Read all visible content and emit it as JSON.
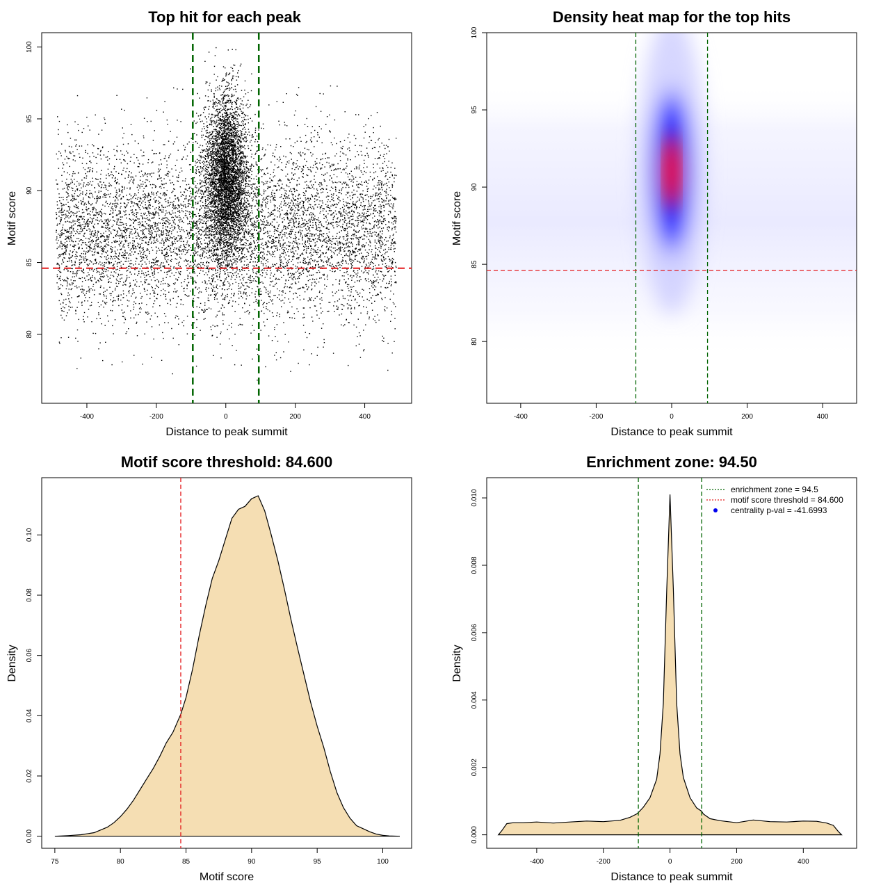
{
  "chart_data": [
    {
      "type": "scatter",
      "title": "Top hit for each peak",
      "xlabel": "Distance to peak summit",
      "ylabel": "Motif score",
      "xticks": [
        "-400",
        "-200",
        "0",
        "200",
        "400"
      ],
      "yticks": [
        "80",
        "85",
        "90",
        "95",
        "100"
      ],
      "xlim": [
        -530,
        535
      ],
      "ylim": [
        75.2,
        101
      ],
      "point_count": 12000,
      "points_note": "Dense background ~75-95 across -490..490; strong central cluster near 0 (sd ~30) at scores ~85-100",
      "vlines": [
        -95,
        95
      ],
      "hline": 84.6
    },
    {
      "type": "heatmap",
      "title": "Density heat map for the top hits",
      "xlabel": "Distance to peak summit",
      "ylabel": "Motif score",
      "xticks": [
        "-400",
        "-200",
        "0",
        "200",
        "400"
      ],
      "yticks": [
        "80",
        "85",
        "90",
        "95",
        "100"
      ],
      "xlim": [
        -490,
        490
      ],
      "ylim": [
        76,
        100
      ],
      "peak": {
        "x": 0,
        "y": 91
      },
      "vlines": [
        -95,
        95
      ],
      "hline": 84.6
    },
    {
      "type": "area",
      "title": "Motif score threshold: 84.600",
      "xlabel": "Motif score",
      "ylabel": "Density",
      "xticks": [
        "75",
        "80",
        "85",
        "90",
        "95",
        "100"
      ],
      "yticks": [
        "0.00",
        "0.02",
        "0.04",
        "0.06",
        "0.08",
        "0.10"
      ],
      "xlim": [
        74,
        102.2
      ],
      "ylim": [
        -0.004,
        0.119
      ],
      "x": [
        75,
        76,
        77,
        78,
        79,
        79.5,
        80,
        80.5,
        81,
        81.5,
        82,
        82.5,
        83,
        83.5,
        84,
        84.6,
        85,
        85.5,
        86,
        86.5,
        87,
        87.5,
        88,
        88.5,
        89,
        89.5,
        90,
        90.5,
        91,
        91.5,
        92,
        92.5,
        93,
        93.5,
        94,
        94.5,
        95,
        95.5,
        96,
        96.5,
        97,
        97.5,
        98,
        98.5,
        99,
        99.5,
        100,
        100.5,
        101.3
      ],
      "y": [
        0,
        0.0002,
        0.0005,
        0.0012,
        0.003,
        0.0045,
        0.0065,
        0.009,
        0.012,
        0.0155,
        0.019,
        0.0225,
        0.0265,
        0.031,
        0.0345,
        0.0405,
        0.046,
        0.0555,
        0.0665,
        0.0765,
        0.0855,
        0.0915,
        0.0985,
        0.1055,
        0.1085,
        0.1095,
        0.112,
        0.113,
        0.108,
        0.1,
        0.0915,
        0.082,
        0.072,
        0.0625,
        0.0535,
        0.0445,
        0.0365,
        0.0295,
        0.0215,
        0.0145,
        0.0095,
        0.006,
        0.0035,
        0.0025,
        0.0015,
        0.0007,
        0.0003,
        0.0001,
        0
      ],
      "vline": 84.6
    },
    {
      "type": "area",
      "title": "Enrichment zone: 94.50",
      "xlabel": "Distance to peak summit",
      "ylabel": "Density",
      "xticks": [
        "-400",
        "-200",
        "0",
        "200",
        "400"
      ],
      "yticks": [
        "0.000",
        "0.002",
        "0.004",
        "0.006",
        "0.008",
        "0.010"
      ],
      "xlim": [
        -550,
        560
      ],
      "ylim": [
        -0.0004,
        0.0106
      ],
      "x": [
        -515,
        -505,
        -490,
        -470,
        -440,
        -400,
        -350,
        -300,
        -250,
        -200,
        -150,
        -120,
        -100,
        -95,
        -80,
        -60,
        -40,
        -30,
        -20,
        -10,
        0,
        10,
        20,
        30,
        40,
        60,
        80,
        95,
        100,
        120,
        150,
        200,
        250,
        300,
        350,
        400,
        440,
        470,
        490,
        505,
        515
      ],
      "y": [
        0,
        0.00012,
        0.00033,
        0.00036,
        0.00036,
        0.00038,
        0.00035,
        0.00038,
        0.00041,
        0.00039,
        0.00043,
        0.00052,
        0.00062,
        0.00066,
        0.00082,
        0.0011,
        0.00165,
        0.0024,
        0.0039,
        0.0072,
        0.0101,
        0.0073,
        0.0039,
        0.0024,
        0.0017,
        0.0011,
        0.0008,
        0.0007,
        0.00062,
        0.00048,
        0.00042,
        0.00036,
        0.00044,
        0.00039,
        0.00038,
        0.00041,
        0.0004,
        0.00035,
        0.00028,
        0.0001,
        0
      ],
      "vlines": [
        -95,
        95
      ],
      "legend": [
        {
          "label": "enrichment zone = 94.5",
          "color": "#006400",
          "style": "dotted"
        },
        {
          "label": "motif score threshold = 84.600",
          "color": "#e41a1c",
          "style": "dotted"
        },
        {
          "label": "centrality p-val = -41.6993",
          "color": "#0000ee",
          "style": "point"
        }
      ]
    }
  ],
  "colors": {
    "green": "#006400",
    "red": "#e41a1c",
    "fill": "#f5deb3",
    "heat_low": "#ffffff",
    "heat_mid": "#0000ff",
    "heat_high": "#ff0000"
  }
}
